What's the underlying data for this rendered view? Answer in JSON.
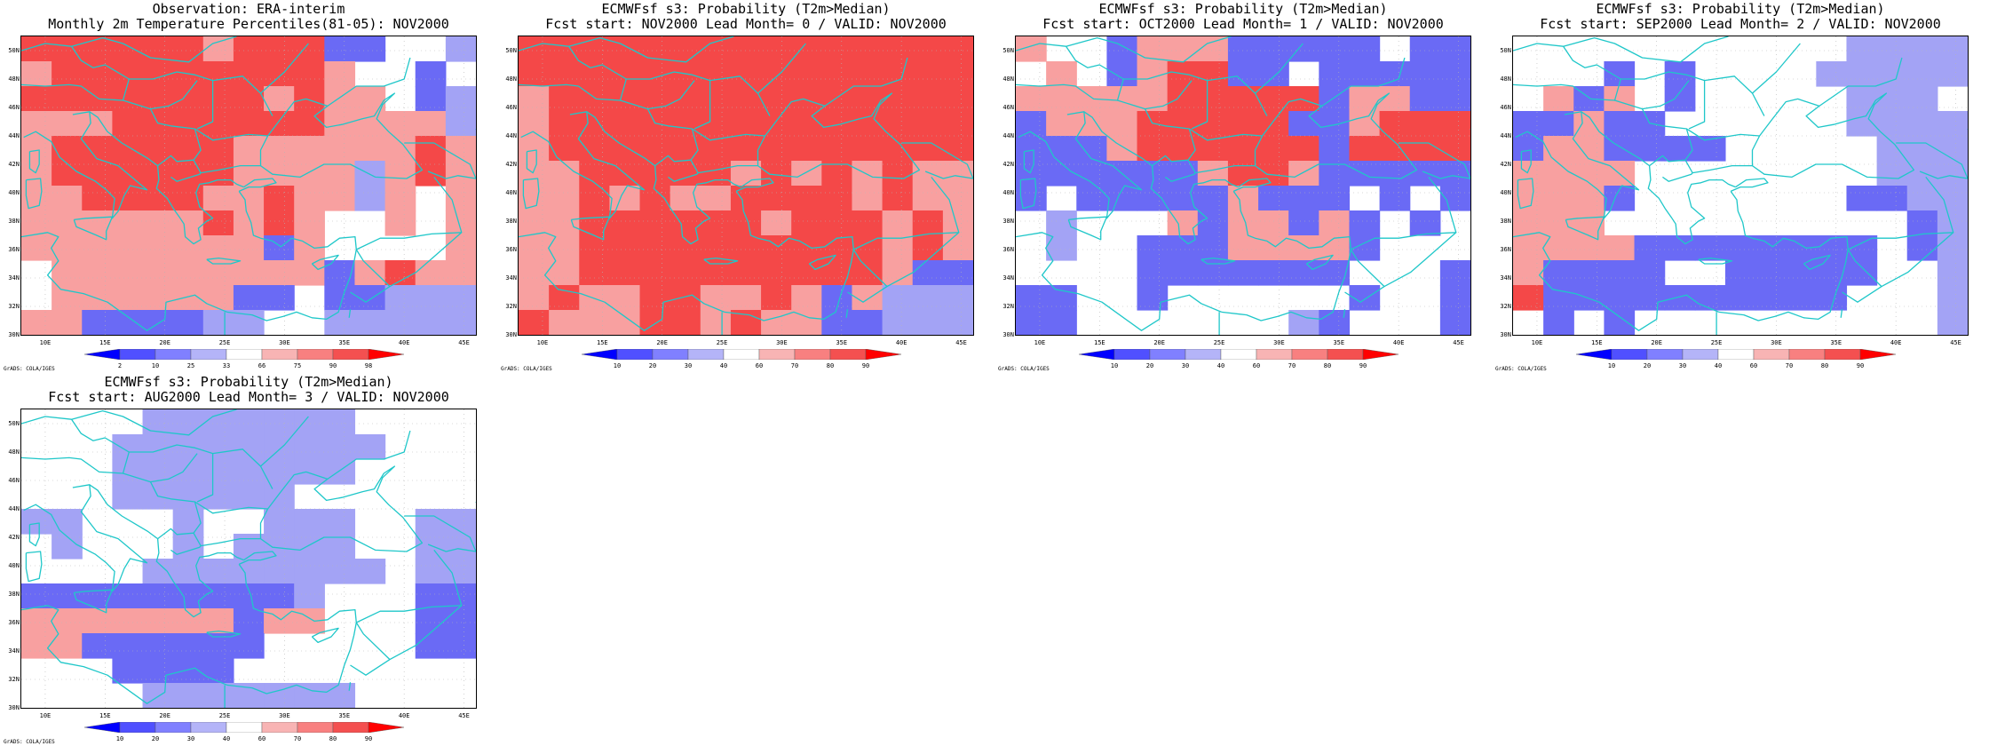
{
  "figure": {
    "panels": [
      {
        "title_lines": [
          "Observation: ERA-interim",
          "Monthly 2m Temperature Percentiles(81-05): NOV2000"
        ],
        "colorbar_labels": [
          "2",
          "10",
          "25",
          "33",
          "66",
          "75",
          "90",
          "98"
        ],
        "grid": [
          "444444344422001",
          "344444444430020",
          "444444443433021",
          "333444444433331",
          "344444433333343",
          "344444433331343",
          "334444334331303",
          "333333434300303",
          "333333332300003",
          "033333333323433",
          "033333322022111",
          "332222110011111"
        ]
      },
      {
        "title_lines": [
          "ECMWFsf s3: Probability (T2m>Median)",
          "Fcst start: NOV2000   Lead Month= 0 / VALID: NOV2000"
        ],
        "colorbar_labels": [
          "10",
          "20",
          "30",
          "40",
          "60",
          "70",
          "80",
          "90"
        ],
        "grid": [
          "444444444444444",
          "444444444444444",
          "344444444444444",
          "344444444444444",
          "344444444444444",
          "334444434343433",
          "334343344443433",
          "334444443444343",
          "334444444444343",
          "334444444444322",
          "343344334323111",
          "433344343322111"
        ]
      },
      {
        "title_lines": [
          "ECMWFsf s3: Probability (T2m>Median)",
          "Fcst start: OCT2000   Lead Month= 1 / VALID: NOV2000"
        ],
        "colorbar_labels": [
          "10",
          "20",
          "30",
          "40",
          "60",
          "70",
          "80",
          "90"
        ],
        "grid": [
          "300233322222022",
          "030234422022222",
          "333334444423322",
          "233344444223444",
          "222344444424444",
          "222222344322222",
          "202222232220202",
          "010003233232020",
          "010022233332000",
          "000022222220002",
          "220020000002002",
          "220000000120002"
        ]
      },
      {
        "title_lines": [
          "ECMWFsf s3: Probability (T2m>Median)",
          "Fcst start: SEP2000   Lead Month= 2 / VALID: NOV2000"
        ],
        "colorbar_labels": [
          "10",
          "20",
          "30",
          "40",
          "60",
          "70",
          "80",
          "90"
        ],
        "grid": [
          "000000000001111",
          "000202000011111",
          "032302000001110",
          "223220000001111",
          "233222200000111",
          "333300000000111",
          "333200000002211",
          "333000000000021",
          "333322222222021",
          "322220022222001",
          "422222222220001",
          "020200000000001"
        ]
      },
      {
        "title_lines": [
          "ECMWFsf s3: Probability (T2m>Median)",
          "Fcst start: AUG2000   Lead Month= 3 / VALID: NOV2000"
        ],
        "colorbar_labels": [
          "10",
          "20",
          "30",
          "40",
          "60",
          "70",
          "80",
          "90"
        ],
        "grid": [
          "000011111110000",
          "000111111111000",
          "000111111110000",
          "000111111000000",
          "110001001110011",
          "010001011110011",
          "000011111111011",
          "222222222100022",
          "333333323300022",
          "332222220000022",
          "000222200000000",
          "000011111110000"
        ]
      }
    ],
    "colors": {
      "levels": [
        "#ffffff",
        "#a3a3f5",
        "#6a6af5",
        "#f8a0a0",
        "#f44848",
        "#ff0000",
        "#ee6f6f"
      ],
      "outline": "#1fc7c9"
    },
    "y_labels": [
      "50N",
      "48N",
      "46N",
      "44N",
      "42N",
      "40N",
      "38N",
      "36N",
      "34N",
      "32N",
      "30N"
    ],
    "x_labels": [
      "10E",
      "15E",
      "20E",
      "25E",
      "30E",
      "35E",
      "40E",
      "45E"
    ],
    "footer": "GrADS: COLA/IGES"
  }
}
